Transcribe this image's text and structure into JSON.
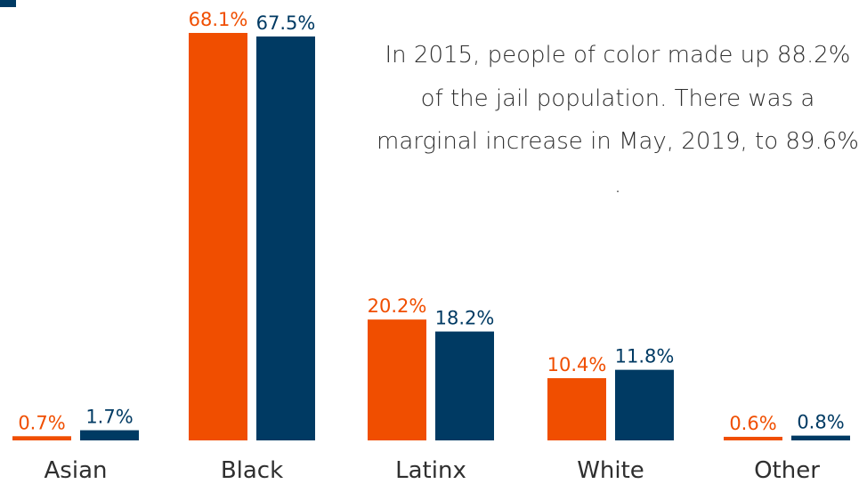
{
  "chart_data": {
    "type": "bar",
    "categories": [
      "Asian",
      "Black",
      "Latinx",
      "White",
      "Other"
    ],
    "series": [
      {
        "values": [
          0.7,
          68.1,
          20.2,
          10.4,
          0.6
        ],
        "labels": [
          "0.7%",
          "68.1%",
          "20.2%",
          "10.4%",
          "0.6%"
        ]
      },
      {
        "values": [
          1.7,
          67.5,
          18.2,
          11.8,
          0.8
        ],
        "labels": [
          "1.7%",
          "67.5%",
          "18.2%",
          "11.8%",
          "0.8%"
        ]
      }
    ],
    "colors": [
      "#f04e00",
      "#003a63"
    ],
    "ylim": [
      0,
      68.1
    ],
    "grid": false,
    "annotation": "In 2015, people of color made up 88.2% of the jail population. There was a marginal increase in May, 2019, to 89.6% ."
  }
}
